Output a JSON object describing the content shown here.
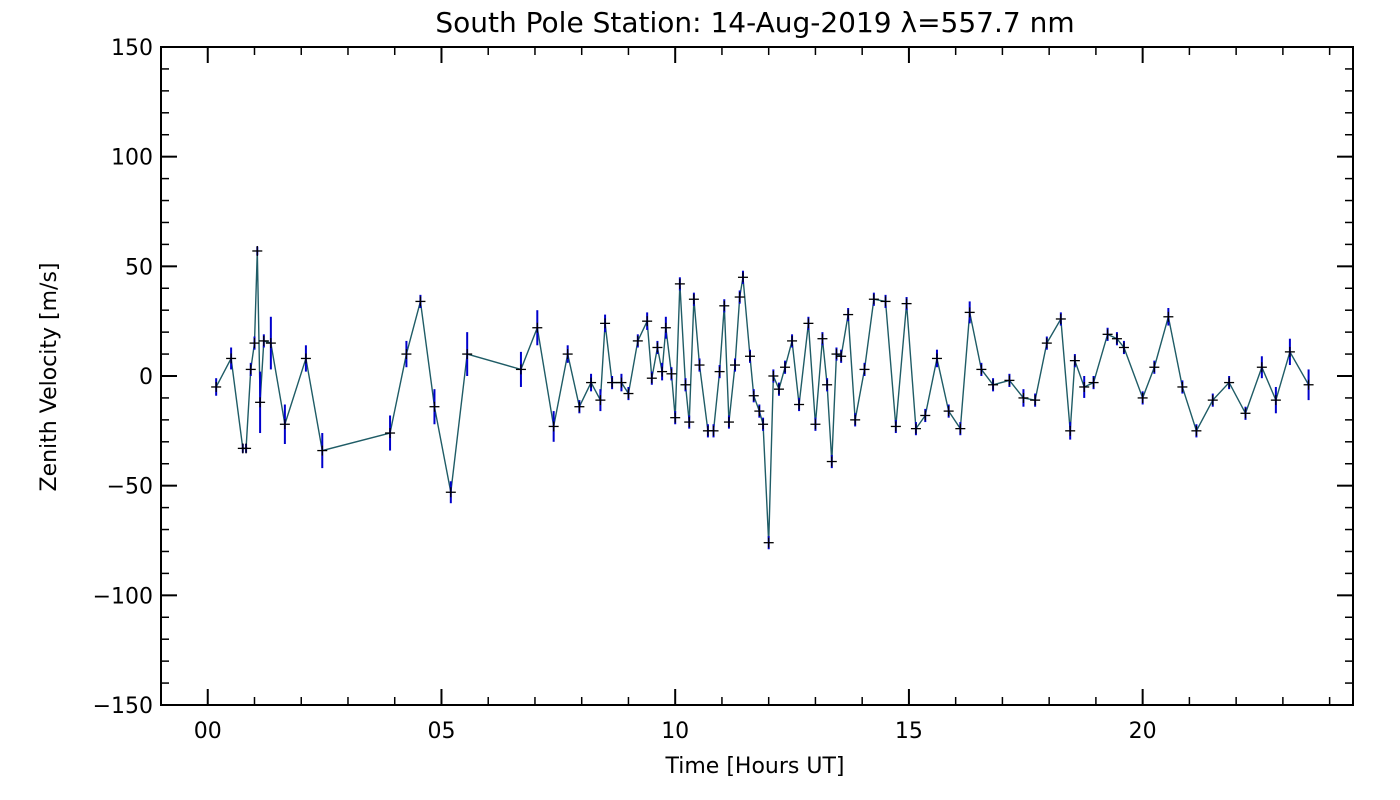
{
  "chart_data": {
    "type": "line",
    "title": "South Pole Station: 14-Aug-2019 λ=557.7 nm",
    "xlabel": "Time [Hours UT]",
    "ylabel": "Zenith Velocity [m/s]",
    "xlim": [
      -1,
      24.5
    ],
    "ylim": [
      -150,
      150
    ],
    "xticks": [
      0,
      5,
      10,
      15,
      20
    ],
    "xtick_labels": [
      "00",
      "05",
      "10",
      "15",
      "20"
    ],
    "yticks": [
      -150,
      -100,
      -50,
      0,
      50,
      100,
      150
    ],
    "ytick_labels": [
      "−150",
      "−100",
      "−50",
      "0",
      "50",
      "100",
      "150"
    ],
    "colors": {
      "line": "#1f5c66",
      "error_bar": "#0000cc",
      "marker": "#000000",
      "axis": "#000000"
    },
    "series": [
      {
        "name": "Zenith Velocity",
        "points": [
          {
            "x": 0.18,
            "y": -5,
            "err": 4
          },
          {
            "x": 0.5,
            "y": 8,
            "err": 5
          },
          {
            "x": 0.75,
            "y": -33,
            "err": 2
          },
          {
            "x": 0.82,
            "y": -33,
            "err": 2
          },
          {
            "x": 0.92,
            "y": 3,
            "err": 3
          },
          {
            "x": 1.0,
            "y": 15,
            "err": 3
          },
          {
            "x": 1.06,
            "y": 57,
            "err": 2
          },
          {
            "x": 1.12,
            "y": -12,
            "err": 14
          },
          {
            "x": 1.2,
            "y": 16,
            "err": 3
          },
          {
            "x": 1.35,
            "y": 15,
            "err": 12
          },
          {
            "x": 1.65,
            "y": -22,
            "err": 9
          },
          {
            "x": 2.1,
            "y": 8,
            "err": 6
          },
          {
            "x": 2.45,
            "y": -34,
            "err": 8
          },
          {
            "x": 3.9,
            "y": -26,
            "err": 8
          },
          {
            "x": 4.25,
            "y": 10,
            "err": 6
          },
          {
            "x": 4.55,
            "y": 34,
            "err": 3
          },
          {
            "x": 4.85,
            "y": -14,
            "err": 8
          },
          {
            "x": 5.2,
            "y": -53,
            "err": 5
          },
          {
            "x": 5.55,
            "y": 10,
            "err": 10
          },
          {
            "x": 6.7,
            "y": 3,
            "err": 8
          },
          {
            "x": 7.05,
            "y": 22,
            "err": 8
          },
          {
            "x": 7.4,
            "y": -23,
            "err": 7
          },
          {
            "x": 7.7,
            "y": 10,
            "err": 4
          },
          {
            "x": 7.95,
            "y": -14,
            "err": 3
          },
          {
            "x": 8.2,
            "y": -3,
            "err": 4
          },
          {
            "x": 8.4,
            "y": -11,
            "err": 5
          },
          {
            "x": 8.5,
            "y": 24,
            "err": 4
          },
          {
            "x": 8.65,
            "y": -3,
            "err": 3
          },
          {
            "x": 8.85,
            "y": -3,
            "err": 4
          },
          {
            "x": 9.0,
            "y": -8,
            "err": 3
          },
          {
            "x": 9.2,
            "y": 16,
            "err": 3
          },
          {
            "x": 9.4,
            "y": 25,
            "err": 4
          },
          {
            "x": 9.5,
            "y": -1,
            "err": 3
          },
          {
            "x": 9.62,
            "y": 13,
            "err": 3
          },
          {
            "x": 9.72,
            "y": 2,
            "err": 4
          },
          {
            "x": 9.8,
            "y": 22,
            "err": 5
          },
          {
            "x": 9.92,
            "y": 1,
            "err": 3
          },
          {
            "x": 10.0,
            "y": -19,
            "err": 3
          },
          {
            "x": 10.1,
            "y": 42,
            "err": 3
          },
          {
            "x": 10.22,
            "y": -4,
            "err": 3
          },
          {
            "x": 10.3,
            "y": -21,
            "err": 3
          },
          {
            "x": 10.4,
            "y": 35,
            "err": 3
          },
          {
            "x": 10.52,
            "y": 5,
            "err": 3
          },
          {
            "x": 10.7,
            "y": -25,
            "err": 3
          },
          {
            "x": 10.82,
            "y": -25,
            "err": 3
          },
          {
            "x": 10.95,
            "y": 2,
            "err": 3
          },
          {
            "x": 11.05,
            "y": 32,
            "err": 3
          },
          {
            "x": 11.15,
            "y": -21,
            "err": 3
          },
          {
            "x": 11.28,
            "y": 5,
            "err": 3
          },
          {
            "x": 11.38,
            "y": 36,
            "err": 3
          },
          {
            "x": 11.45,
            "y": 45,
            "err": 3
          },
          {
            "x": 11.6,
            "y": 9,
            "err": 3
          },
          {
            "x": 11.68,
            "y": -9,
            "err": 3
          },
          {
            "x": 11.8,
            "y": -16,
            "err": 3
          },
          {
            "x": 11.88,
            "y": -22,
            "err": 3
          },
          {
            "x": 12.0,
            "y": -76,
            "err": 3
          },
          {
            "x": 12.1,
            "y": 0,
            "err": 3
          },
          {
            "x": 12.22,
            "y": -6,
            "err": 3
          },
          {
            "x": 12.35,
            "y": 4,
            "err": 3
          },
          {
            "x": 12.5,
            "y": 16,
            "err": 3
          },
          {
            "x": 12.65,
            "y": -13,
            "err": 3
          },
          {
            "x": 12.85,
            "y": 24,
            "err": 3
          },
          {
            "x": 13.0,
            "y": -22,
            "err": 3
          },
          {
            "x": 13.15,
            "y": 17,
            "err": 3
          },
          {
            "x": 13.25,
            "y": -4,
            "err": 3
          },
          {
            "x": 13.35,
            "y": -39,
            "err": 3
          },
          {
            "x": 13.45,
            "y": 10,
            "err": 3
          },
          {
            "x": 13.55,
            "y": 9,
            "err": 3
          },
          {
            "x": 13.7,
            "y": 28,
            "err": 3
          },
          {
            "x": 13.85,
            "y": -20,
            "err": 3
          },
          {
            "x": 14.05,
            "y": 3,
            "err": 3
          },
          {
            "x": 14.25,
            "y": 35,
            "err": 3
          },
          {
            "x": 14.5,
            "y": 34,
            "err": 3
          },
          {
            "x": 14.72,
            "y": -23,
            "err": 3
          },
          {
            "x": 14.95,
            "y": 33,
            "err": 3
          },
          {
            "x": 15.15,
            "y": -24,
            "err": 3
          },
          {
            "x": 15.35,
            "y": -18,
            "err": 3
          },
          {
            "x": 15.6,
            "y": 8,
            "err": 4
          },
          {
            "x": 15.85,
            "y": -16,
            "err": 3
          },
          {
            "x": 16.1,
            "y": -24,
            "err": 3
          },
          {
            "x": 16.3,
            "y": 29,
            "err": 5
          },
          {
            "x": 16.55,
            "y": 3,
            "err": 3
          },
          {
            "x": 16.8,
            "y": -4,
            "err": 3
          },
          {
            "x": 17.15,
            "y": -2,
            "err": 3
          },
          {
            "x": 17.45,
            "y": -10,
            "err": 4
          },
          {
            "x": 17.7,
            "y": -11,
            "err": 3
          },
          {
            "x": 17.95,
            "y": 15,
            "err": 3
          },
          {
            "x": 18.25,
            "y": 26,
            "err": 3
          },
          {
            "x": 18.45,
            "y": -25,
            "err": 4
          },
          {
            "x": 18.55,
            "y": 7,
            "err": 3
          },
          {
            "x": 18.75,
            "y": -5,
            "err": 5
          },
          {
            "x": 18.95,
            "y": -3,
            "err": 3
          },
          {
            "x": 19.25,
            "y": 19,
            "err": 3
          },
          {
            "x": 19.45,
            "y": 17,
            "err": 3
          },
          {
            "x": 19.6,
            "y": 13,
            "err": 3
          },
          {
            "x": 20.0,
            "y": -10,
            "err": 3
          },
          {
            "x": 20.25,
            "y": 4,
            "err": 3
          },
          {
            "x": 20.55,
            "y": 27,
            "err": 4
          },
          {
            "x": 20.85,
            "y": -5,
            "err": 3
          },
          {
            "x": 21.15,
            "y": -25,
            "err": 3
          },
          {
            "x": 21.5,
            "y": -11,
            "err": 3
          },
          {
            "x": 21.85,
            "y": -3,
            "err": 3
          },
          {
            "x": 22.2,
            "y": -17,
            "err": 3
          },
          {
            "x": 22.55,
            "y": 4,
            "err": 5
          },
          {
            "x": 22.85,
            "y": -11,
            "err": 6
          },
          {
            "x": 23.15,
            "y": 11,
            "err": 6
          },
          {
            "x": 23.55,
            "y": -4,
            "err": 7
          }
        ]
      }
    ]
  }
}
